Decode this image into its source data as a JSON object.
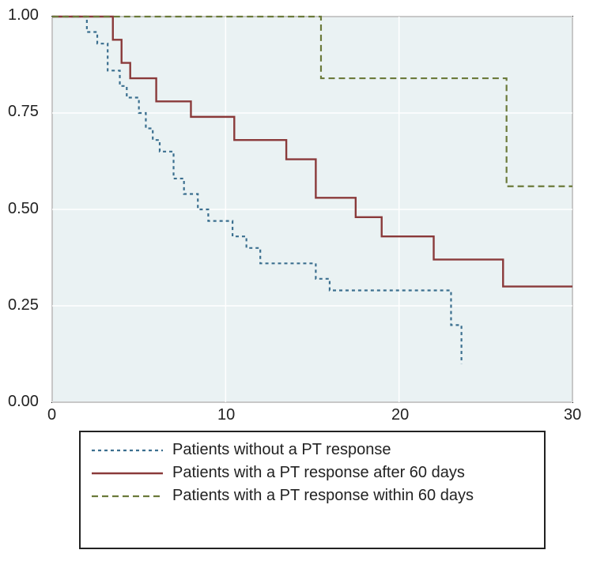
{
  "chart": {
    "type": "survival-step",
    "background_color": "#eaf2f3",
    "grid_color": "#ffffff",
    "border_color": "#222222",
    "xlim": [
      0,
      30
    ],
    "ylim": [
      0,
      1
    ],
    "xtick_step": 10,
    "ytick_step": 0.25,
    "xtick_labels": [
      "0",
      "10",
      "20",
      "30"
    ],
    "ytick_labels": [
      "0.00",
      "0.25",
      "0.50",
      "0.75",
      "1.00"
    ],
    "label_fontsize": 20,
    "series": [
      {
        "id": "no-response",
        "label": "Patients without a PT response",
        "color": "#3b6f8f",
        "dash": "4,4",
        "width": 2.2,
        "points": [
          [
            0,
            1.0
          ],
          [
            2.0,
            1.0
          ],
          [
            2.0,
            0.96
          ],
          [
            2.6,
            0.96
          ],
          [
            2.6,
            0.93
          ],
          [
            3.2,
            0.93
          ],
          [
            3.2,
            0.86
          ],
          [
            3.9,
            0.86
          ],
          [
            3.9,
            0.82
          ],
          [
            4.3,
            0.82
          ],
          [
            4.3,
            0.79
          ],
          [
            5.0,
            0.79
          ],
          [
            5.0,
            0.75
          ],
          [
            5.4,
            0.75
          ],
          [
            5.4,
            0.71
          ],
          [
            5.8,
            0.71
          ],
          [
            5.8,
            0.68
          ],
          [
            6.2,
            0.68
          ],
          [
            6.2,
            0.65
          ],
          [
            7.0,
            0.65
          ],
          [
            7.0,
            0.58
          ],
          [
            7.6,
            0.58
          ],
          [
            7.6,
            0.54
          ],
          [
            8.4,
            0.54
          ],
          [
            8.4,
            0.5
          ],
          [
            9.0,
            0.5
          ],
          [
            9.0,
            0.47
          ],
          [
            10.4,
            0.47
          ],
          [
            10.4,
            0.43
          ],
          [
            11.2,
            0.43
          ],
          [
            11.2,
            0.4
          ],
          [
            12.0,
            0.4
          ],
          [
            12.0,
            0.36
          ],
          [
            15.2,
            0.36
          ],
          [
            15.2,
            0.32
          ],
          [
            16.0,
            0.32
          ],
          [
            16.0,
            0.29
          ],
          [
            23.0,
            0.29
          ],
          [
            23.0,
            0.2
          ],
          [
            23.6,
            0.2
          ],
          [
            23.6,
            0.1
          ]
        ]
      },
      {
        "id": "after-60",
        "label": "Patients with a PT response after 60 days",
        "color": "#8a3a3a",
        "dash": "none",
        "width": 2.4,
        "points": [
          [
            0,
            1.0
          ],
          [
            3.5,
            1.0
          ],
          [
            3.5,
            0.94
          ],
          [
            4.0,
            0.94
          ],
          [
            4.0,
            0.88
          ],
          [
            4.5,
            0.88
          ],
          [
            4.5,
            0.84
          ],
          [
            6.0,
            0.84
          ],
          [
            6.0,
            0.78
          ],
          [
            8.0,
            0.78
          ],
          [
            8.0,
            0.74
          ],
          [
            10.5,
            0.74
          ],
          [
            10.5,
            0.68
          ],
          [
            13.5,
            0.68
          ],
          [
            13.5,
            0.63
          ],
          [
            15.2,
            0.63
          ],
          [
            15.2,
            0.53
          ],
          [
            17.5,
            0.53
          ],
          [
            17.5,
            0.48
          ],
          [
            19.0,
            0.48
          ],
          [
            19.0,
            0.43
          ],
          [
            22.0,
            0.43
          ],
          [
            22.0,
            0.37
          ],
          [
            26.0,
            0.37
          ],
          [
            26.0,
            0.3
          ],
          [
            30.0,
            0.3
          ]
        ]
      },
      {
        "id": "within-60",
        "label": "Patients with a PT response within 60 days",
        "color": "#6b7a3a",
        "dash": "8,5",
        "width": 2.2,
        "points": [
          [
            0,
            1.0
          ],
          [
            15.5,
            1.0
          ],
          [
            15.5,
            0.84
          ],
          [
            26.2,
            0.84
          ],
          [
            26.2,
            0.56
          ],
          [
            30.0,
            0.56
          ]
        ]
      }
    ],
    "legend": {
      "border_color": "#222222",
      "background_color": "#ffffff",
      "fontsize": 20
    }
  }
}
